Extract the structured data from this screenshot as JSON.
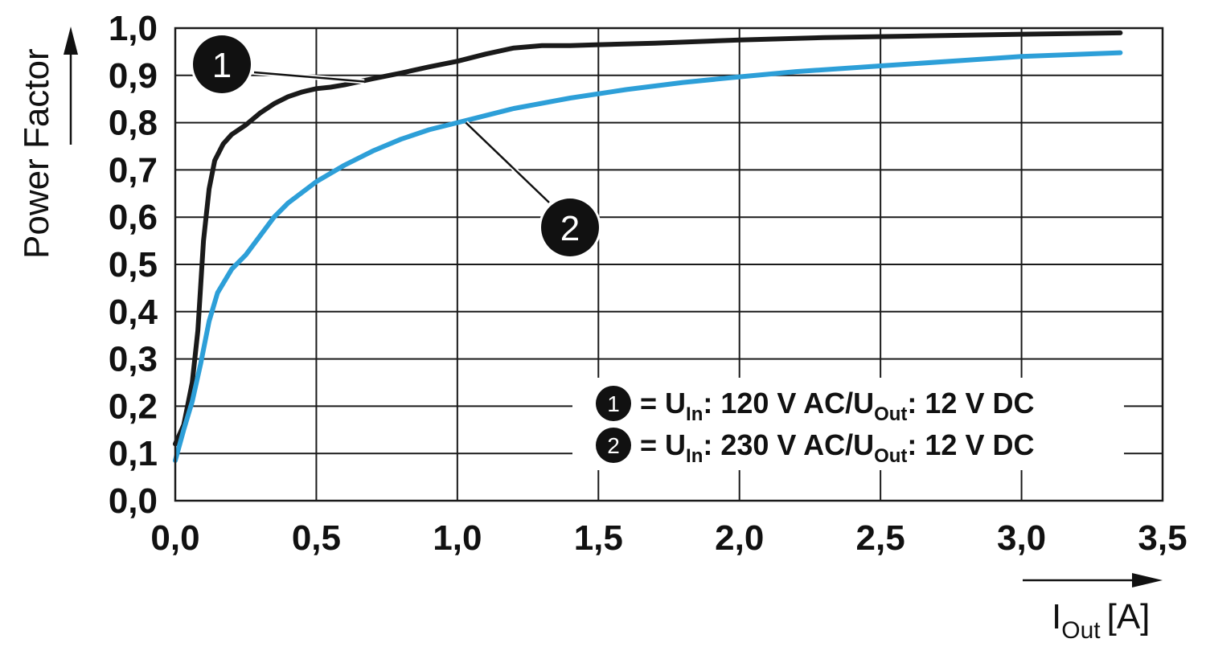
{
  "chart_data": {
    "type": "line",
    "title": "",
    "ylabel": "Power Factor",
    "xlabel": {
      "main": "I",
      "sub": "Out",
      "unit": "[A]"
    },
    "xlim": [
      0,
      3.5
    ],
    "ylim": [
      0,
      1.0
    ],
    "x_ticks": [
      "0,0",
      "0,5",
      "1,0",
      "1,5",
      "2,0",
      "2,5",
      "3,0",
      "3,5"
    ],
    "y_ticks": [
      "0,0",
      "0,1",
      "0,2",
      "0,3",
      "0,4",
      "0,5",
      "0,6",
      "0,7",
      "0,8",
      "0,9",
      "1,0"
    ],
    "grid": true,
    "legend_position": "bottom-right",
    "series": [
      {
        "marker": "1",
        "color": "#1a1a1a",
        "x": [
          0.0,
          0.03,
          0.06,
          0.08,
          0.1,
          0.12,
          0.14,
          0.17,
          0.2,
          0.25,
          0.3,
          0.35,
          0.4,
          0.45,
          0.5,
          0.55,
          0.6,
          0.7,
          0.8,
          0.9,
          1.0,
          1.1,
          1.2,
          1.3,
          1.4,
          1.5,
          1.7,
          2.0,
          2.3,
          2.6,
          3.0,
          3.35
        ],
        "y": [
          0.12,
          0.16,
          0.25,
          0.36,
          0.55,
          0.66,
          0.72,
          0.755,
          0.775,
          0.795,
          0.82,
          0.84,
          0.855,
          0.865,
          0.872,
          0.875,
          0.88,
          0.893,
          0.905,
          0.918,
          0.93,
          0.945,
          0.958,
          0.963,
          0.963,
          0.965,
          0.968,
          0.975,
          0.98,
          0.983,
          0.987,
          0.99
        ]
      },
      {
        "marker": "2",
        "color": "#2d9fd8",
        "x": [
          0.0,
          0.03,
          0.06,
          0.09,
          0.12,
          0.15,
          0.2,
          0.25,
          0.3,
          0.35,
          0.4,
          0.5,
          0.6,
          0.7,
          0.8,
          0.9,
          1.0,
          1.1,
          1.2,
          1.4,
          1.6,
          1.8,
          2.0,
          2.2,
          2.5,
          2.8,
          3.0,
          3.35
        ],
        "y": [
          0.085,
          0.15,
          0.21,
          0.29,
          0.38,
          0.44,
          0.49,
          0.52,
          0.56,
          0.6,
          0.63,
          0.675,
          0.71,
          0.74,
          0.765,
          0.785,
          0.8,
          0.815,
          0.83,
          0.852,
          0.87,
          0.885,
          0.897,
          0.908,
          0.92,
          0.932,
          0.94,
          0.948
        ]
      }
    ],
    "legend": [
      {
        "marker": "1",
        "u_prefix": "= U",
        "u_sub": "In",
        "mid": ": 120 V AC/U",
        "out_sub": "Out",
        "tail": ": 12 V DC"
      },
      {
        "marker": "2",
        "u_prefix": "= U",
        "u_sub": "In",
        "mid": ": 230 V AC/U",
        "out_sub": "Out",
        "tail": ": 12 V DC"
      }
    ]
  }
}
